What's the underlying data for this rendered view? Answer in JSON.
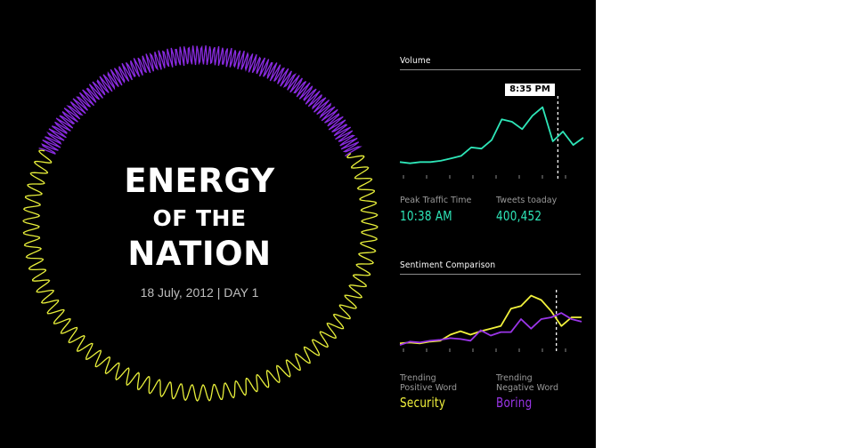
{
  "poster": {
    "title_line_1": "ENERGY",
    "title_line_2": "OF THE",
    "title_line_3": "NATION",
    "date": "18 July, 2012 | DAY 1"
  },
  "ring": {
    "purple_color": "#8a2be2",
    "yellow_color": "#e8ef3a"
  },
  "volume": {
    "section_title": "Volume",
    "marker_time": "8:35 PM",
    "peak_label": "Peak Traffic Time",
    "peak_value": "10:38 AM",
    "tweets_label": "Tweets toaday",
    "tweets_value": "400,452",
    "accent_color": "#2ee6b8"
  },
  "sentiment": {
    "section_title": "Sentiment Comparison",
    "positive_label_1": "Trending",
    "positive_label_2": "Positive Word",
    "positive_word": "Security",
    "negative_label_1": "Trending",
    "negative_label_2": "Negative Word",
    "negative_word": "Boring",
    "positive_color": "#f2f23c",
    "negative_color": "#9a35e8"
  },
  "chart_data": [
    {
      "type": "line",
      "title": "Volume",
      "x": [
        0,
        1,
        2,
        3,
        4,
        5,
        6,
        7,
        8,
        9,
        10,
        11,
        12,
        13,
        14,
        15,
        16,
        17,
        18
      ],
      "series": [
        {
          "values": [
            10,
            9,
            10,
            10,
            11,
            13,
            15,
            22,
            21,
            28,
            45,
            43,
            37,
            48,
            55,
            27,
            35,
            24,
            30
          ]
        }
      ],
      "ylim": [
        0,
        70
      ],
      "marker_x": 15.5,
      "marker_label": "8:35 PM",
      "grid": false
    },
    {
      "type": "line",
      "title": "Sentiment Comparison",
      "x": [
        0,
        1,
        2,
        3,
        4,
        5,
        6,
        7,
        8,
        9,
        10,
        11,
        12,
        13,
        14,
        15,
        16,
        17,
        18
      ],
      "series": [
        {
          "name": "Security",
          "values": [
            10,
            11,
            10,
            12,
            13,
            20,
            24,
            20,
            24,
            27,
            30,
            50,
            53,
            65,
            60,
            47,
            30,
            40,
            40
          ]
        },
        {
          "name": "Boring",
          "values": [
            8,
            12,
            11,
            13,
            14,
            16,
            15,
            13,
            25,
            19,
            23,
            23,
            38,
            27,
            38,
            40,
            45,
            38,
            35
          ]
        }
      ],
      "ylim": [
        0,
        80
      ],
      "marker_x": 15.5,
      "grid": false
    }
  ]
}
